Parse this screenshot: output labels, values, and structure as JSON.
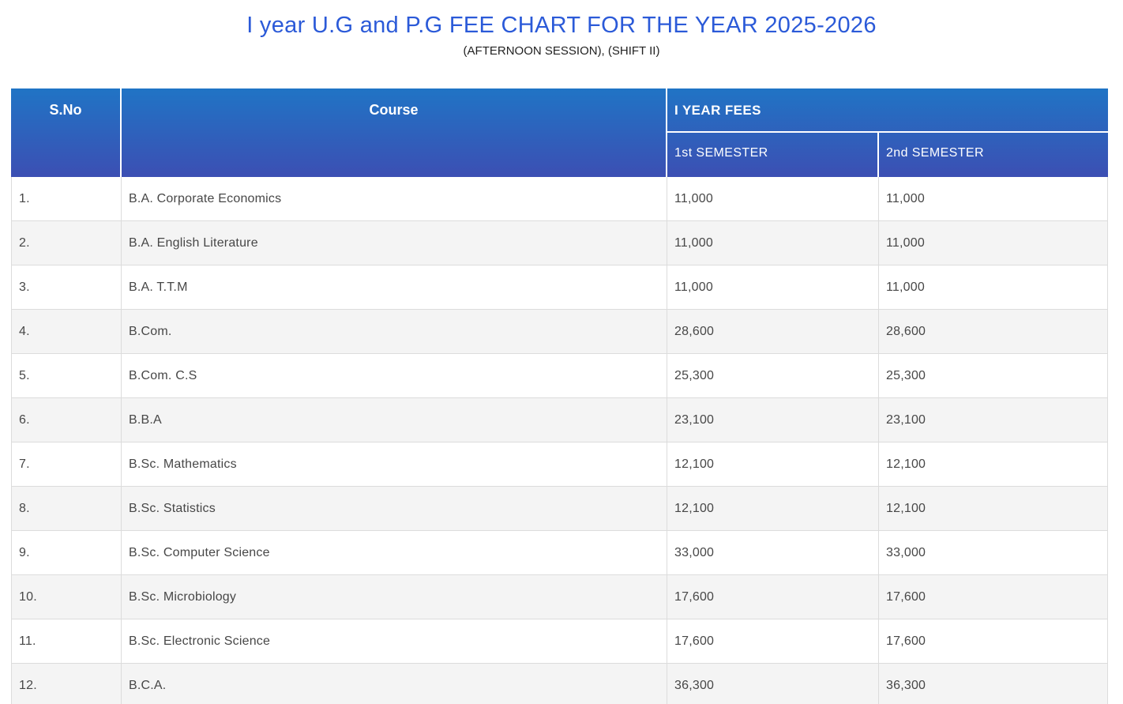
{
  "page": {
    "title": "I year U.G and P.G FEE CHART FOR THE YEAR 2025-2026",
    "subtitle": "(AFTERNOON SESSION), (SHIFT II)",
    "title_color": "#2b5ad8"
  },
  "table": {
    "headers": {
      "sno": "S.No",
      "course": "Course",
      "year_fees": "I YEAR FEES",
      "sem1": "1st SEMESTER",
      "sem2": "2nd SEMESTER"
    },
    "header_colors": {
      "gradient_top": "#2074c5",
      "gradient_bottom": "#3c4fb3"
    },
    "row_colors": {
      "odd": "#ffffff",
      "even": "#f4f4f4"
    },
    "rows": [
      {
        "no": "1.",
        "course": "B.A. Corporate Economics",
        "sem1": "11,000",
        "sem2": "11,000"
      },
      {
        "no": "2.",
        "course": "B.A. English Literature",
        "sem1": "11,000",
        "sem2": "11,000"
      },
      {
        "no": "3.",
        "course": "B.A. T.T.M",
        "sem1": "11,000",
        "sem2": "11,000"
      },
      {
        "no": "4.",
        "course": "B.Com.",
        "sem1": "28,600",
        "sem2": "28,600"
      },
      {
        "no": "5.",
        "course": "B.Com. C.S",
        "sem1": "25,300",
        "sem2": "25,300"
      },
      {
        "no": "6.",
        "course": "B.B.A",
        "sem1": "23,100",
        "sem2": "23,100"
      },
      {
        "no": "7.",
        "course": "B.Sc. Mathematics",
        "sem1": "12,100",
        "sem2": "12,100"
      },
      {
        "no": "8.",
        "course": "B.Sc. Statistics",
        "sem1": "12,100",
        "sem2": "12,100"
      },
      {
        "no": "9.",
        "course": "B.Sc. Computer Science",
        "sem1": "33,000",
        "sem2": "33,000"
      },
      {
        "no": "10.",
        "course": "B.Sc. Microbiology",
        "sem1": "17,600",
        "sem2": "17,600"
      },
      {
        "no": "11.",
        "course": "B.Sc. Electronic Science",
        "sem1": "17,600",
        "sem2": "17,600"
      },
      {
        "no": "12.",
        "course": "B.C.A.",
        "sem1": "36,300",
        "sem2": "36,300"
      }
    ]
  }
}
